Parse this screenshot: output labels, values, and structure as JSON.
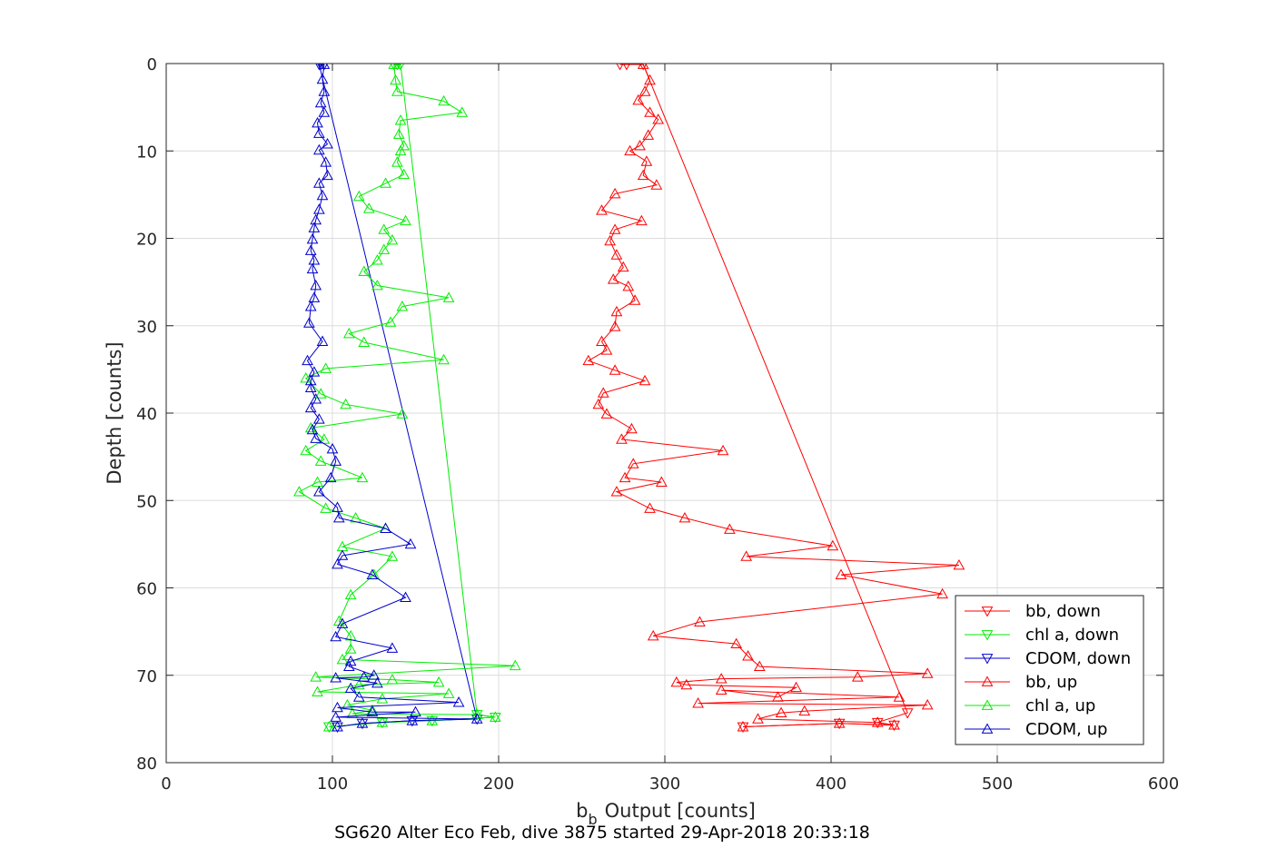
{
  "chart_data": {
    "type": "line",
    "title": "",
    "caption": "SG620 Alter Eco Feb, dive 3875 started 29-Apr-2018 20:33:18",
    "xlabel": "Output [counts]",
    "xlabel_symbol": "b",
    "xlabel_subscript": "b",
    "ylabel": "Depth [counts]",
    "xlim": [
      0,
      600
    ],
    "ylim": [
      0,
      80
    ],
    "y_reversed": true,
    "xticks": [
      0,
      100,
      200,
      300,
      400,
      500,
      600
    ],
    "yticks": [
      0,
      10,
      20,
      30,
      40,
      50,
      60,
      70,
      80
    ],
    "grid": true,
    "legend_position": "bottom-right",
    "series": [
      {
        "name": "bb, down",
        "color": "#ff0000",
        "marker": "triangle-down",
        "points": [
          [
            277,
            0.1
          ],
          [
            273,
            0.1
          ],
          [
            287,
            0.1
          ],
          [
            446,
            74.3
          ],
          [
            428,
            75.4
          ],
          [
            438,
            75.7
          ],
          [
            405,
            75.5
          ],
          [
            347,
            75.9
          ]
        ]
      },
      {
        "name": "chl a, down",
        "color": "#00ee00",
        "marker": "triangle-down",
        "points": [
          [
            139,
            0.1
          ],
          [
            137,
            0.1
          ],
          [
            141,
            0.1
          ],
          [
            187,
            74.5
          ],
          [
            198,
            74.8
          ],
          [
            160,
            75.2
          ],
          [
            130,
            75.4
          ],
          [
            98,
            75.9
          ]
        ]
      },
      {
        "name": "CDOM, down",
        "color": "#0000cc",
        "marker": "triangle-down",
        "points": [
          [
            93,
            0.1
          ],
          [
            95,
            0.1
          ],
          [
            92,
            0.1
          ],
          [
            187,
            75.0
          ],
          [
            148,
            75.2
          ],
          [
            118,
            75.5
          ],
          [
            103,
            75.9
          ]
        ]
      },
      {
        "name": "bb, up",
        "color": "#ff0000",
        "marker": "triangle-up",
        "points": [
          [
            347,
            75.9
          ],
          [
            405,
            75.5
          ],
          [
            438,
            75.7
          ],
          [
            428,
            75.4
          ],
          [
            356,
            75.0
          ],
          [
            370,
            74.3
          ],
          [
            384,
            74.1
          ],
          [
            458,
            73.4
          ],
          [
            320,
            73.2
          ],
          [
            441,
            72.5
          ],
          [
            334,
            71.7
          ],
          [
            368,
            72.5
          ],
          [
            379,
            71.4
          ],
          [
            313,
            71.1
          ],
          [
            307,
            70.8
          ],
          [
            334,
            70.4
          ],
          [
            416,
            70.2
          ],
          [
            458,
            69.8
          ],
          [
            357,
            69.0
          ],
          [
            350,
            67.8
          ],
          [
            343,
            66.4
          ],
          [
            293,
            65.5
          ],
          [
            321,
            63.9
          ],
          [
            467,
            60.7
          ],
          [
            406,
            58.5
          ],
          [
            477,
            57.4
          ],
          [
            349,
            56.4
          ],
          [
            401,
            55.2
          ],
          [
            339,
            53.3
          ],
          [
            312,
            52.0
          ],
          [
            291,
            50.9
          ],
          [
            271,
            49.0
          ],
          [
            298,
            47.9
          ],
          [
            276,
            47.4
          ],
          [
            281,
            45.8
          ],
          [
            335,
            44.3
          ],
          [
            274,
            43.0
          ],
          [
            280,
            41.8
          ],
          [
            265,
            40.1
          ],
          [
            260,
            39.0
          ],
          [
            263,
            37.7
          ],
          [
            288,
            36.3
          ],
          [
            270,
            35.1
          ],
          [
            254,
            34.0
          ],
          [
            265,
            32.8
          ],
          [
            262,
            31.8
          ],
          [
            270,
            30.1
          ],
          [
            271,
            28.4
          ],
          [
            282,
            27.1
          ],
          [
            278,
            25.5
          ],
          [
            269,
            24.7
          ],
          [
            275,
            23.3
          ],
          [
            271,
            21.9
          ],
          [
            267,
            20.3
          ],
          [
            270,
            19.0
          ],
          [
            286,
            18.0
          ],
          [
            262,
            16.8
          ],
          [
            270,
            14.9
          ],
          [
            295,
            13.9
          ],
          [
            287,
            12.8
          ],
          [
            289,
            11.2
          ],
          [
            279,
            10.0
          ],
          [
            285,
            9.4
          ],
          [
            290,
            8.2
          ],
          [
            296,
            6.4
          ],
          [
            291,
            5.6
          ],
          [
            284,
            4.2
          ],
          [
            288,
            3.2
          ],
          [
            291,
            1.9
          ],
          [
            287,
            0.1
          ]
        ]
      },
      {
        "name": "chl a, up",
        "color": "#00ee00",
        "marker": "triangle-up",
        "points": [
          [
            98,
            75.9
          ],
          [
            130,
            75.4
          ],
          [
            160,
            75.2
          ],
          [
            198,
            74.8
          ],
          [
            187,
            74.5
          ],
          [
            112,
            74.4
          ],
          [
            124,
            74.0
          ],
          [
            109,
            73.4
          ],
          [
            130,
            72.7
          ],
          [
            170,
            72.1
          ],
          [
            91,
            71.9
          ],
          [
            116,
            71.1
          ],
          [
            164,
            70.8
          ],
          [
            136,
            70.5
          ],
          [
            90,
            70.2
          ],
          [
            210,
            68.9
          ],
          [
            106,
            68.2
          ],
          [
            111,
            67.0
          ],
          [
            111,
            65.5
          ],
          [
            104,
            63.8
          ],
          [
            111,
            60.8
          ],
          [
            125,
            58.5
          ],
          [
            136,
            56.4
          ],
          [
            106,
            55.3
          ],
          [
            132,
            53.2
          ],
          [
            114,
            52.0
          ],
          [
            96,
            50.9
          ],
          [
            80,
            49.0
          ],
          [
            91,
            47.9
          ],
          [
            118,
            47.4
          ],
          [
            93,
            45.5
          ],
          [
            84,
            44.3
          ],
          [
            95,
            43.0
          ],
          [
            87,
            41.7
          ],
          [
            142,
            40.1
          ],
          [
            108,
            39.0
          ],
          [
            93,
            37.8
          ],
          [
            84,
            36.0
          ],
          [
            96,
            34.9
          ],
          [
            167,
            33.9
          ],
          [
            119,
            31.9
          ],
          [
            110,
            30.9
          ],
          [
            135,
            29.6
          ],
          [
            142,
            27.8
          ],
          [
            170,
            26.8
          ],
          [
            127,
            25.4
          ],
          [
            119,
            23.8
          ],
          [
            127,
            22.5
          ],
          [
            131,
            21.3
          ],
          [
            136,
            20.2
          ],
          [
            131,
            19.0
          ],
          [
            144,
            18.0
          ],
          [
            122,
            16.6
          ],
          [
            116,
            15.2
          ],
          [
            132,
            13.7
          ],
          [
            143,
            12.7
          ],
          [
            139,
            11.3
          ],
          [
            141,
            10.0
          ],
          [
            143,
            9.4
          ],
          [
            140,
            8.1
          ],
          [
            141,
            6.5
          ],
          [
            178,
            5.6
          ],
          [
            167,
            4.3
          ],
          [
            139,
            3.2
          ],
          [
            138,
            1.9
          ],
          [
            137,
            0.1
          ]
        ]
      },
      {
        "name": "CDOM, up",
        "color": "#0000cc",
        "marker": "triangle-up",
        "points": [
          [
            103,
            75.9
          ],
          [
            118,
            75.5
          ],
          [
            148,
            75.2
          ],
          [
            187,
            75.0
          ],
          [
            102,
            74.8
          ],
          [
            150,
            74.2
          ],
          [
            124,
            74.2
          ],
          [
            103,
            73.7
          ],
          [
            176,
            73.1
          ],
          [
            116,
            72.5
          ],
          [
            111,
            71.5
          ],
          [
            127,
            70.9
          ],
          [
            102,
            70.3
          ],
          [
            119,
            70.2
          ],
          [
            125,
            70.0
          ],
          [
            110,
            69.0
          ],
          [
            111,
            68.4
          ],
          [
            136,
            66.9
          ],
          [
            102,
            65.6
          ],
          [
            106,
            64.1
          ],
          [
            144,
            61.1
          ],
          [
            124,
            58.5
          ],
          [
            103,
            57.3
          ],
          [
            106,
            56.3
          ],
          [
            147,
            55.0
          ],
          [
            132,
            53.2
          ],
          [
            104,
            52.0
          ],
          [
            103,
            50.8
          ],
          [
            92,
            49.0
          ],
          [
            99,
            47.4
          ],
          [
            102,
            45.5
          ],
          [
            100,
            44.1
          ],
          [
            90,
            42.9
          ],
          [
            88,
            41.9
          ],
          [
            92,
            40.7
          ],
          [
            87,
            39.4
          ],
          [
            90,
            38.4
          ],
          [
            87,
            37.1
          ],
          [
            87,
            36.3
          ],
          [
            89,
            35.3
          ],
          [
            85,
            34.0
          ],
          [
            94,
            31.8
          ],
          [
            86,
            29.7
          ],
          [
            87,
            27.8
          ],
          [
            89,
            26.8
          ],
          [
            90,
            25.4
          ],
          [
            88,
            23.5
          ],
          [
            89,
            22.5
          ],
          [
            87,
            21.4
          ],
          [
            88,
            20.1
          ],
          [
            89,
            18.8
          ],
          [
            90,
            17.9
          ],
          [
            92,
            16.7
          ],
          [
            94,
            15.1
          ],
          [
            92,
            13.7
          ],
          [
            97,
            12.8
          ],
          [
            96,
            11.3
          ],
          [
            92,
            9.9
          ],
          [
            97,
            9.2
          ],
          [
            92,
            8.0
          ],
          [
            91,
            6.8
          ],
          [
            95,
            5.6
          ],
          [
            93,
            4.5
          ],
          [
            95,
            3.2
          ],
          [
            94,
            1.8
          ],
          [
            95,
            0.1
          ]
        ]
      }
    ]
  }
}
